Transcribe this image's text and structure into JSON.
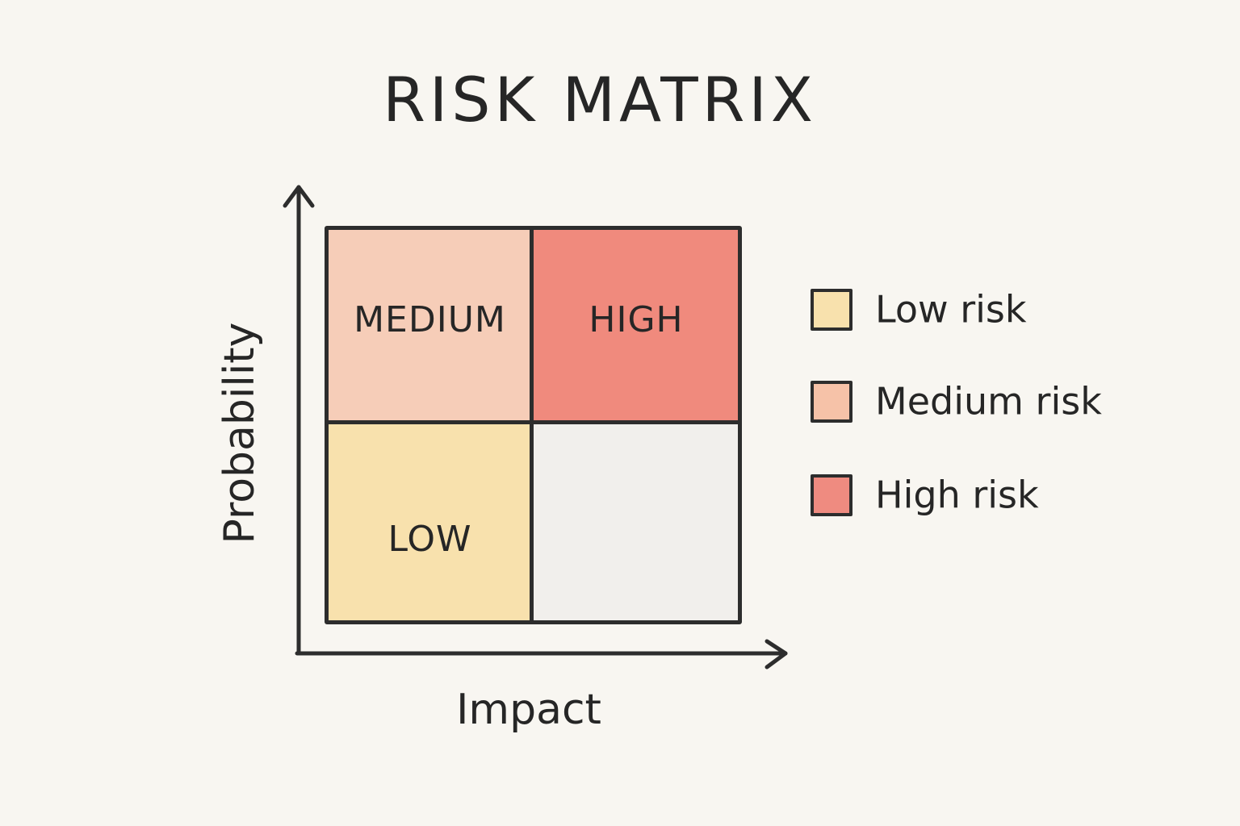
{
  "title": "RISK MATRIX",
  "axes": {
    "x_label": "Impact",
    "y_label": "Probability"
  },
  "matrix": {
    "top_left": {
      "label": "MEDIUM",
      "color": "#f6cdb8"
    },
    "top_right": {
      "label": "HIGH",
      "color": "#f08a7d"
    },
    "bottom_left": {
      "label": "LOW",
      "color": "#f8e1ad"
    },
    "bottom_right": {
      "label": "",
      "color": "#f1efec"
    }
  },
  "legend": [
    {
      "label": "Low risk",
      "color": "#f8e1ad"
    },
    {
      "label": "Medium risk",
      "color": "#f6c2a8"
    },
    {
      "label": "High risk",
      "color": "#ef8b80"
    }
  ]
}
